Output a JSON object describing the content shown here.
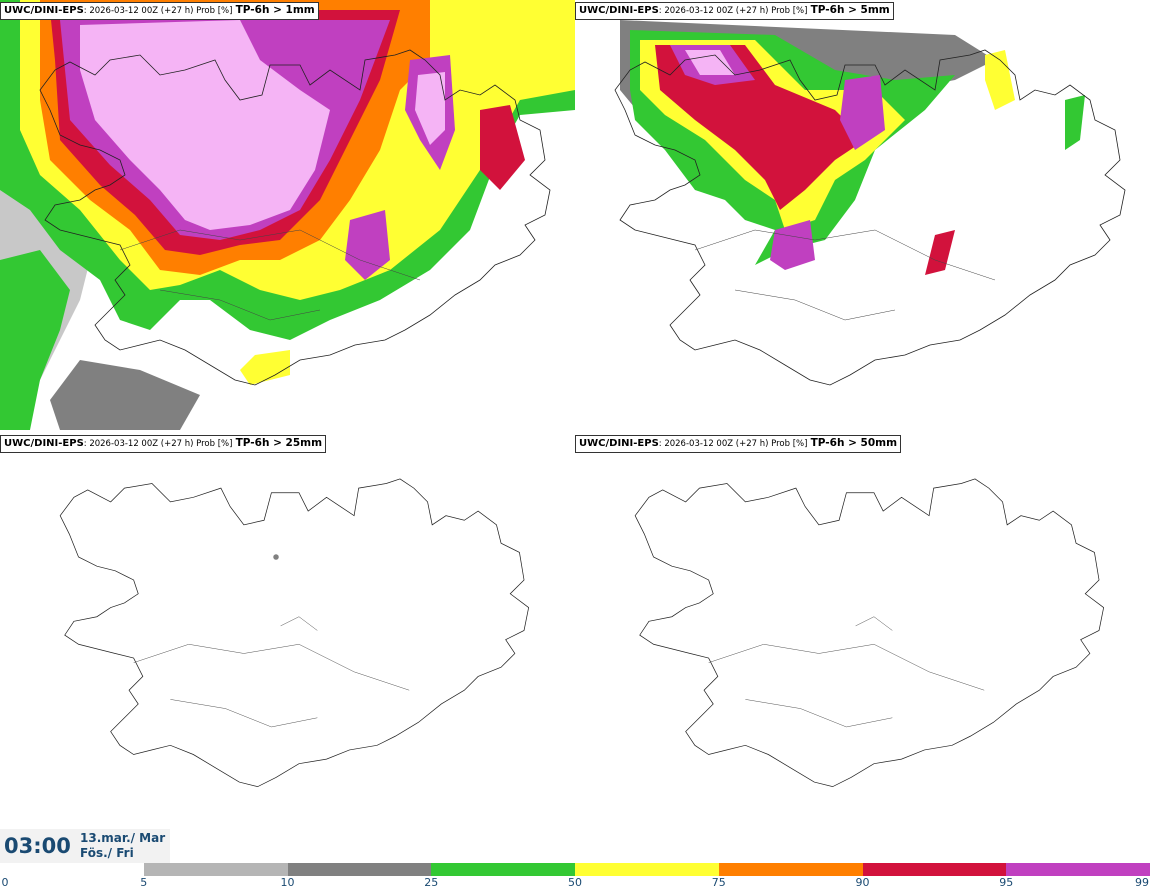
{
  "panels": [
    {
      "model": "UWC/DINI-EPS",
      "meta": ": 2026-03-12 00Z (+27 h) Prob [%]",
      "param": "TP-6h > 1mm"
    },
    {
      "model": "UWC/DINI-EPS",
      "meta": ": 2026-03-12 00Z (+27 h) Prob [%]",
      "param": "TP-6h > 5mm"
    },
    {
      "model": "UWC/DINI-EPS",
      "meta": ": 2026-03-12 00Z (+27 h) Prob [%]",
      "param": "TP-6h > 25mm"
    },
    {
      "model": "UWC/DINI-EPS",
      "meta": ": 2026-03-12 00Z (+27 h) Prob [%]",
      "param": "TP-6h > 50mm"
    }
  ],
  "valid_time": {
    "time": "03:00",
    "date_line1": "13.mar./ Mar",
    "date_line2": "Fös./ Fri"
  },
  "colorbar": {
    "ticks": [
      "0",
      "5",
      "10",
      "25",
      "50",
      "75",
      "90",
      "95",
      "99"
    ],
    "colors": [
      "#ffffff",
      "#b5b5b5",
      "#808080",
      "#33c833",
      "#ffff33",
      "#ff7f00",
      "#d2123c",
      "#c040c0",
      "#f5b4f5"
    ]
  },
  "colors": {
    "land_outline": "#222222",
    "sea_gray_light": "#c8c8c8",
    "sea_gray_dark": "#808080",
    "green": "#33c833",
    "yellow": "#ffff33",
    "orange": "#ff7f00",
    "red": "#d2123c",
    "magenta": "#c040c0",
    "pink": "#f5b4f5"
  }
}
